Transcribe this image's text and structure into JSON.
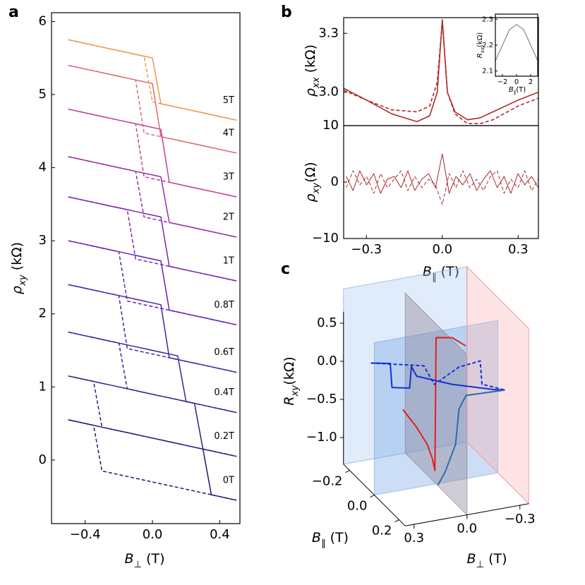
{
  "chart_data": [
    {
      "panel_label": "a",
      "type": "line",
      "x": [
        -0.5,
        -0.45,
        -0.4,
        -0.35,
        -0.3,
        -0.25,
        -0.2,
        -0.15,
        -0.1,
        -0.05,
        0,
        0.05,
        0.1,
        0.15,
        0.2,
        0.25,
        0.3,
        0.35,
        0.4,
        0.45,
        0.5
      ],
      "xlim": [
        -0.6,
        0.52
      ],
      "ylim": [
        -0.87,
        6.12
      ],
      "xticks": [
        {
          "value": -0.4,
          "label": "−0.4"
        },
        {
          "value": 0,
          "label": "0.0"
        },
        0.4
      ],
      "yticks": [
        0,
        1,
        2,
        3,
        4,
        5,
        6
      ],
      "x_label": {
        "symbol": "B",
        "sub": "⊥",
        "unit": " (T)"
      },
      "y_label": {
        "symbol": "ρ",
        "sub": "xy",
        "unit": " (kΩ)"
      },
      "series": [
        {
          "name": "0T",
          "color": "#1c1a70",
          "values": [
            0.55,
            0.525,
            0.5,
            0.475,
            0.45,
            0.425,
            0.4,
            0.375,
            0.35,
            0.325,
            0.3,
            0.275,
            0.25,
            0.225,
            0.2,
            0.175,
            0.15,
            -0.475,
            -0.5,
            -0.525,
            -0.55
          ]
        },
        {
          "color": "#1c1a70",
          "dash": true,
          "values": [
            0.55,
            0.525,
            0.5,
            0.475,
            -0.15,
            -0.175,
            -0.2,
            -0.225,
            -0.25,
            -0.275,
            -0.3,
            -0.325,
            -0.35,
            -0.375,
            -0.4,
            -0.425,
            -0.45,
            -0.475,
            -0.5,
            -0.525,
            -0.55
          ]
        },
        {
          "name": "0.2T",
          "color": "#2c2188",
          "values": [
            1.15,
            1.125,
            1.1,
            1.075,
            1.05,
            1.025,
            1.0,
            0.975,
            0.95,
            0.925,
            0.9,
            0.875,
            0.85,
            0.825,
            0.8,
            0.775,
            0.15,
            0.125,
            0.1,
            0.075,
            0.05
          ]
        },
        {
          "color": "#2c2188",
          "dash": true,
          "values": [
            1.15,
            1.125,
            1.1,
            1.075,
            0.45,
            0.425,
            0.4,
            0.375,
            0.35,
            0.325,
            0.3,
            0.275,
            0.25,
            0.225,
            0.2,
            0.175,
            0.15,
            0.125,
            0.1,
            0.075,
            0.05
          ]
        },
        {
          "name": "0.4T",
          "color": "#3b229c",
          "values": [
            1.75,
            1.725,
            1.7,
            1.675,
            1.65,
            1.625,
            1.6,
            1.575,
            1.55,
            1.525,
            1.5,
            1.475,
            1.45,
            1.425,
            0.8,
            0.775,
            0.75,
            0.725,
            0.7,
            0.675,
            0.65
          ]
        },
        {
          "color": "#3b229c",
          "dash": true,
          "values": [
            1.75,
            1.725,
            1.7,
            1.675,
            1.65,
            1.625,
            1.6,
            0.975,
            0.95,
            0.925,
            0.9,
            0.875,
            0.85,
            0.825,
            0.8,
            0.775,
            0.75,
            0.725,
            0.7,
            0.675,
            0.65
          ]
        },
        {
          "name": "0.6T",
          "color": "#4e22ac",
          "values": [
            2.4,
            2.375,
            2.35,
            2.325,
            2.3,
            2.275,
            2.25,
            2.225,
            2.2,
            2.175,
            2.15,
            2.125,
            1.4,
            1.375,
            1.35,
            1.325,
            1.3,
            1.275,
            1.25,
            1.225,
            1.2
          ]
        },
        {
          "color": "#4e22ac",
          "dash": true,
          "values": [
            2.4,
            2.375,
            2.35,
            2.325,
            2.3,
            2.275,
            2.25,
            1.525,
            1.5,
            1.475,
            1.45,
            1.425,
            1.4,
            1.375,
            1.35,
            1.325,
            1.3,
            1.275,
            1.25,
            1.225,
            1.2
          ]
        },
        {
          "name": "0.8T",
          "color": "#6322b4",
          "values": [
            3.0,
            2.975,
            2.95,
            2.925,
            2.9,
            2.875,
            2.85,
            2.825,
            2.8,
            2.775,
            2.75,
            2.725,
            2.05,
            2.025,
            2.0,
            1.975,
            1.95,
            1.925,
            1.9,
            1.875,
            1.85
          ]
        },
        {
          "color": "#6322b4",
          "dash": true,
          "values": [
            3.0,
            2.975,
            2.95,
            2.925,
            2.9,
            2.875,
            2.85,
            2.175,
            2.15,
            2.125,
            2.1,
            2.075,
            2.05,
            2.025,
            2.0,
            1.975,
            1.95,
            1.925,
            1.9,
            1.875,
            1.85
          ]
        },
        {
          "name": "1T",
          "color": "#7b25b0",
          "values": [
            3.6,
            3.575,
            3.55,
            3.525,
            3.5,
            3.475,
            3.45,
            3.425,
            3.4,
            3.375,
            3.35,
            3.325,
            2.65,
            2.625,
            2.6,
            2.575,
            2.55,
            2.525,
            2.5,
            2.475,
            2.45
          ]
        },
        {
          "color": "#7b25b0",
          "dash": true,
          "values": [
            3.6,
            3.575,
            3.55,
            3.525,
            3.5,
            3.475,
            3.45,
            3.425,
            2.75,
            2.725,
            2.7,
            2.675,
            2.65,
            2.625,
            2.6,
            2.575,
            2.55,
            2.525,
            2.5,
            2.475,
            2.45
          ]
        },
        {
          "name": "2T",
          "color": "#9a2ea6",
          "values": [
            4.15,
            4.125,
            4.1,
            4.075,
            4.05,
            4.025,
            4.0,
            3.975,
            3.95,
            3.925,
            3.9,
            3.875,
            3.25,
            3.225,
            3.2,
            3.175,
            3.15,
            3.125,
            3.1,
            3.075,
            3.05
          ]
        },
        {
          "color": "#9a2ea6",
          "dash": true,
          "values": [
            4.15,
            4.125,
            4.1,
            4.075,
            4.05,
            4.025,
            4.0,
            3.975,
            3.95,
            3.325,
            3.3,
            3.275,
            3.25,
            3.225,
            3.2,
            3.175,
            3.15,
            3.125,
            3.1,
            3.075,
            3.05
          ]
        },
        {
          "name": "3T",
          "color": "#bd4496",
          "values": [
            4.8,
            4.775,
            4.75,
            4.725,
            4.7,
            4.675,
            4.65,
            4.625,
            4.6,
            4.575,
            4.55,
            4.525,
            3.8,
            3.775,
            3.75,
            3.725,
            3.7,
            3.675,
            3.65,
            3.625,
            3.6
          ]
        },
        {
          "color": "#bd4496",
          "dash": true,
          "values": [
            4.8,
            4.775,
            4.75,
            4.725,
            4.7,
            4.675,
            4.65,
            4.625,
            4.6,
            3.875,
            3.85,
            3.825,
            3.8,
            3.775,
            3.75,
            3.725,
            3.7,
            3.675,
            3.65,
            3.625,
            3.6
          ]
        },
        {
          "name": "4T",
          "color": "#dd6a74",
          "values": [
            5.4,
            5.375,
            5.35,
            5.325,
            5.3,
            5.275,
            5.25,
            5.225,
            5.2,
            5.175,
            5.15,
            4.425,
            4.4,
            4.375,
            4.35,
            4.325,
            4.3,
            4.275,
            4.25,
            4.225,
            4.2
          ]
        },
        {
          "color": "#dd6a74",
          "dash": true,
          "values": [
            5.4,
            5.375,
            5.35,
            5.325,
            5.3,
            5.275,
            5.25,
            5.225,
            5.2,
            4.475,
            4.45,
            4.425,
            4.4,
            4.375,
            4.35,
            4.325,
            4.3,
            4.275,
            4.25,
            4.225,
            4.2
          ]
        },
        {
          "name": "5T",
          "color": "#f2954a",
          "values": [
            5.75,
            5.725,
            5.7,
            5.675,
            5.65,
            5.625,
            5.6,
            5.575,
            5.55,
            5.525,
            5.5,
            4.875,
            4.85,
            4.825,
            4.8,
            4.775,
            4.75,
            4.725,
            4.7,
            4.675,
            4.65
          ]
        },
        {
          "color": "#f2954a",
          "dash": true,
          "values": [
            5.75,
            5.725,
            5.7,
            5.675,
            5.65,
            5.625,
            5.6,
            5.575,
            5.55,
            5.525,
            4.9,
            4.875,
            4.85,
            4.825,
            4.8,
            4.775,
            4.75,
            4.725,
            4.7,
            4.675,
            4.65
          ]
        }
      ]
    },
    {
      "panel_label": "b",
      "type": "line",
      "x": [
        -0.39,
        -0.3,
        -0.2,
        -0.1,
        -0.05,
        -0.02,
        0,
        0.02,
        0.05,
        0.1,
        0.15,
        0.2,
        0.3,
        0.38
      ],
      "xlim": [
        -0.39,
        0.38
      ],
      "ylim": [
        2.83,
        3.38
      ],
      "yticks": [
        {
          "value": 3,
          "label": "3.0"
        },
        3.3
      ],
      "y_label": {
        "symbol": "ρ",
        "sub": "xx",
        "unit": " (kΩ)"
      },
      "series": [
        {
          "color": "#b22a2a",
          "values": [
            3.02,
            2.96,
            2.89,
            2.85,
            2.88,
            3.0,
            3.37,
            3.0,
            2.9,
            2.86,
            2.87,
            2.9,
            2.96,
            3.0
          ]
        },
        {
          "color": "#b22a2a",
          "dash": true,
          "values": [
            3.01,
            2.96,
            2.91,
            2.9,
            2.93,
            3.05,
            3.36,
            3.0,
            2.89,
            2.84,
            2.84,
            2.86,
            2.93,
            2.97
          ]
        }
      ]
    },
    {
      "type": "line",
      "x": [
        -0.38,
        -0.353,
        -0.326,
        -0.299,
        -0.271,
        -0.244,
        -0.217,
        -0.19,
        -0.163,
        -0.136,
        -0.109,
        -0.081,
        -0.054,
        -0.027,
        0,
        0.027,
        0.054,
        0.081,
        0.109,
        0.136,
        0.163,
        0.19,
        0.217,
        0.244,
        0.271,
        0.299,
        0.326,
        0.353,
        0.38
      ],
      "xlim": [
        -0.39,
        0.38
      ],
      "ylim": [
        -10,
        10
      ],
      "xticks": [
        {
          "value": -0.3,
          "label": "−0.3"
        },
        {
          "value": 0,
          "label": "0.0"
        },
        0.3
      ],
      "yticks": [
        {
          "value": -10,
          "label": "−10"
        },
        0,
        10
      ],
      "x_label": {
        "symbol": "B",
        "sub": "∥",
        "unit": " (T)"
      },
      "y_label": {
        "symbol": "ρ",
        "sub": "xy",
        "unit": "(Ω)"
      },
      "series": [
        {
          "color": "#a8282a",
          "values": [
            1,
            -1.5,
            2,
            -0.5,
            1.5,
            -2,
            0.5,
            1,
            -1,
            2,
            -1.5,
            0.5,
            1.5,
            -1,
            5,
            -2,
            1,
            -0.5,
            1.5,
            -1.5,
            0.5,
            2,
            -1,
            1,
            -2,
            1.5,
            -0.5,
            1,
            -1
          ]
        },
        {
          "color": "#a8282a",
          "dash": true,
          "values": [
            -1,
            2,
            -0.5,
            1,
            -2,
            1.5,
            -1,
            0.5,
            2,
            -1.5,
            1,
            -1,
            0.5,
            -0.5,
            -4,
            1.5,
            -1,
            2,
            -1,
            0.5,
            -1.5,
            1,
            2,
            -2,
            0.5,
            -1,
            2,
            -1.5,
            0.5
          ]
        }
      ]
    },
    {
      "type": "line",
      "x": [
        -3,
        -2,
        -1,
        0,
        1,
        2,
        3
      ],
      "xlim": [
        -3,
        3
      ],
      "ylim": [
        2.08,
        2.32
      ],
      "xticks": [
        {
          "value": -2,
          "label": "−2"
        },
        0,
        2
      ],
      "yticks": [
        2.1,
        2.2,
        2.3
      ],
      "x_label": {
        "symbol": "B",
        "sub": "∥",
        "unit": "(T)"
      },
      "y_label": {
        "symbol": "R",
        "sub": "xx",
        "unit": "(kΩ)"
      },
      "series": [
        {
          "color": "#888888",
          "values": [
            2.14,
            2.2,
            2.26,
            2.28,
            2.26,
            2.2,
            2.14
          ]
        }
      ]
    },
    {
      "panel_label": "c",
      "type": "line3d",
      "xlim": [
        -0.35,
        0.35
      ],
      "ylim": [
        -0.25,
        0.25
      ],
      "zlim": [
        -1.35,
        0.65
      ],
      "xticks": [
        0.3,
        {
          "value": 0,
          "label": "0.0"
        },
        {
          "value": -0.3,
          "label": "−0.3"
        }
      ],
      "yticks": [
        {
          "value": -0.2,
          "label": "−0.2"
        },
        {
          "value": 0,
          "label": "0.0"
        },
        0.2
      ],
      "zticks": [
        0.5,
        {
          "value": 0,
          "label": "0.0"
        },
        {
          "value": -0.5,
          "label": "−0.5"
        },
        {
          "value": -1,
          "label": "−1.0"
        }
      ],
      "x_label": {
        "symbol": "B",
        "sub": "⊥",
        "unit": " (T)"
      },
      "y_label": {
        "symbol": "B",
        "sub": "∥",
        "unit": " (T)"
      },
      "z_label": {
        "symbol": "R",
        "sub": "xy",
        "unit": "(kΩ)"
      },
      "series": [
        {
          "color": "#e3201b",
          "sweep": "par",
          "x": [
            -0.27,
            -0.16,
            -0.07,
            -0.03,
            -0.01,
            0,
            0.13,
            0.24
          ],
          "values": [
            -0.81,
            -0.86,
            -0.95,
            -1.07,
            -1.19,
            0.57,
            0.78,
            0.85
          ]
        },
        {
          "color": "#1530d8",
          "sweep": "perp",
          "x": [
            0.37,
            0.26,
            0.25,
            0.15,
            0.14,
            0.11,
            -0.09,
            -0.33,
            -0.39
          ],
          "values": [
            0.39,
            0.34,
            0.02,
            -0.03,
            0.25,
            0.11,
            -0.08,
            -0.25,
            -0.28
          ]
        },
        {
          "color": "#1530d8",
          "dash": true,
          "sweep": "perp",
          "x": [
            0.37,
            0.07,
            0.01,
            -0.13,
            -0.25,
            -0.26,
            -0.39
          ],
          "values": [
            0.39,
            0.23,
            -0.04,
            0.13,
            0.16,
            -0.15,
            -0.28
          ]
        },
        {
          "color": "#2a70a8",
          "sweep": "perp",
          "x": [
            -0.01,
            -0.05,
            -0.11,
            -0.13,
            -0.17,
            -0.39
          ],
          "values": [
            -1.37,
            -1.22,
            -0.88,
            -0.42,
            -0.26,
            -0.28
          ]
        }
      ]
    }
  ]
}
